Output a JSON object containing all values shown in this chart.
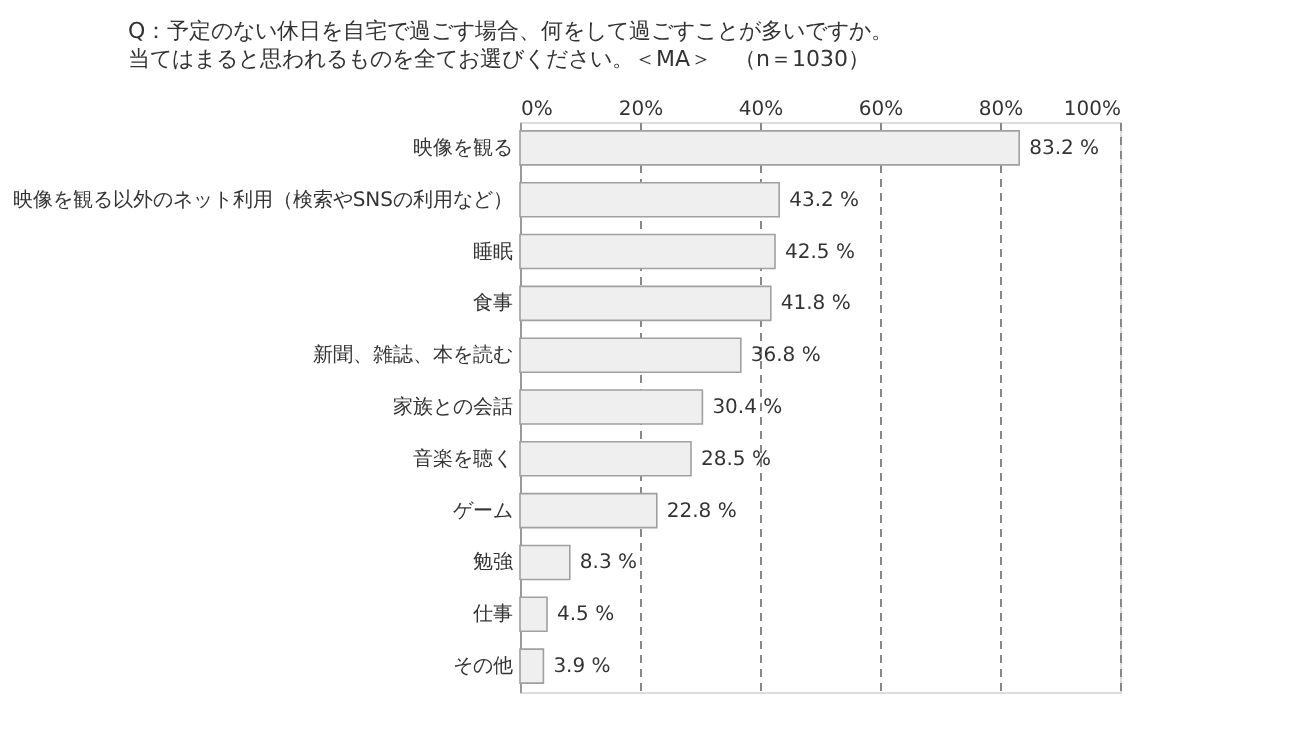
{
  "chart_data": {
    "type": "bar",
    "orientation": "horizontal",
    "title": "Q：予定のない休日を自宅で過ごす場合、何をして過ごすことが多いですか。",
    "subtitle": "当てはまると思われるものを全てお選びください。＜MA＞　（n＝1030）",
    "categories": [
      "映像を観る",
      "映像を観る以外のネット利用（検索やSNSの利用など）",
      "睡眠",
      "食事",
      "新聞、雑誌、本を読む",
      "家族との会話",
      "音楽を聴く",
      "ゲーム",
      "勉強",
      "仕事",
      "その他"
    ],
    "values": [
      83.2,
      43.2,
      42.5,
      41.8,
      36.8,
      30.4,
      28.5,
      22.8,
      8.3,
      4.5,
      3.9
    ],
    "value_labels": [
      "83.2 %",
      "43.2 %",
      "42.5 %",
      "41.8 %",
      "36.8 %",
      "30.4 %",
      "28.5 %",
      "22.8 %",
      "8.3 %",
      "4.5 %",
      "3.9 %"
    ],
    "color": "#efefef",
    "xlim": [
      0,
      100
    ],
    "xticks": [
      {
        "value": 0,
        "label": "0%"
      },
      {
        "value": 20,
        "label": "20%"
      },
      {
        "value": 40,
        "label": "40%"
      },
      {
        "value": 60,
        "label": "60%"
      },
      {
        "value": 80,
        "label": "80%"
      },
      {
        "value": 100,
        "label": "100%"
      }
    ],
    "grid": "x"
  }
}
